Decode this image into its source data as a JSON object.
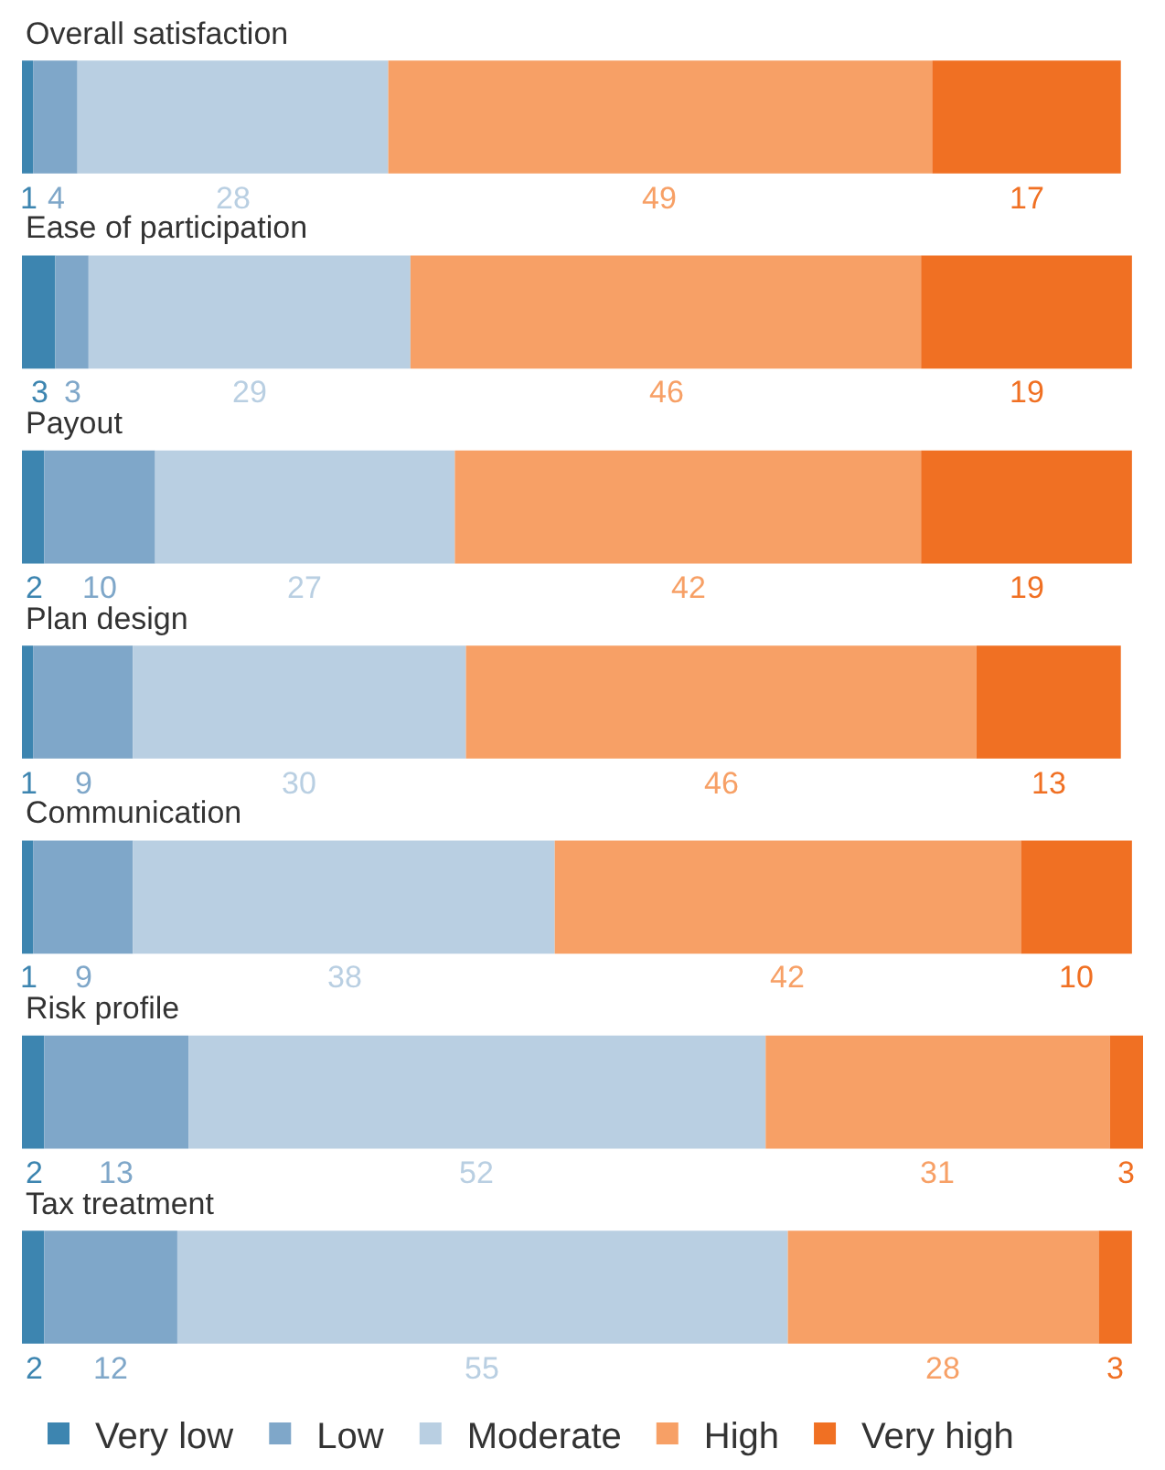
{
  "chart_data": {
    "type": "bar",
    "orientation": "horizontal",
    "stacked": true,
    "data_labels": true,
    "legend": "bottom",
    "categories": [
      "Overall satisfaction",
      "Ease of participation",
      "Payout",
      "Plan design",
      "Communication",
      "Risk profile",
      "Tax treatment"
    ],
    "series": [
      {
        "name": "Very low",
        "color": "#3d85b0",
        "values": [
          1,
          3,
          2,
          1,
          1,
          2,
          2
        ]
      },
      {
        "name": "Low",
        "color": "#7fa7c9",
        "values": [
          4,
          3,
          10,
          9,
          9,
          13,
          12
        ]
      },
      {
        "name": "Moderate",
        "color": "#b9cfe2",
        "values": [
          28,
          29,
          27,
          30,
          38,
          52,
          55
        ]
      },
      {
        "name": "High",
        "color": "#f7a066",
        "values": [
          49,
          46,
          42,
          46,
          42,
          31,
          28
        ]
      },
      {
        "name": "Very high",
        "color": "#f07023",
        "values": [
          17,
          19,
          19,
          13,
          10,
          3,
          3
        ]
      }
    ]
  }
}
